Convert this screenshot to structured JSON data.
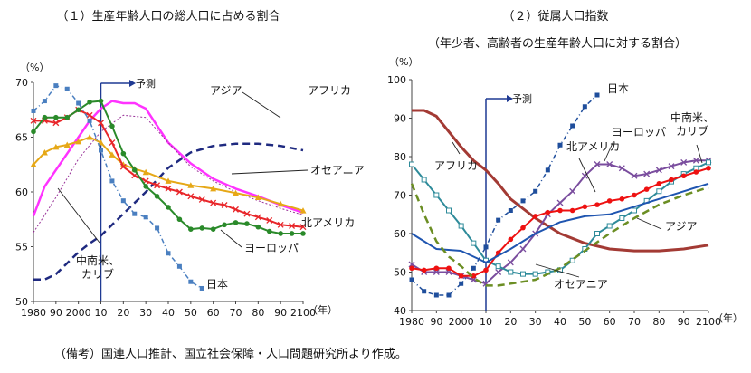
{
  "chart_data": [
    {
      "type": "line",
      "title": "（１）生産年齢人口の総人口に占める割合",
      "unit_label": "（%）",
      "xlabel": "（年）",
      "xlim": [
        1980,
        2100
      ],
      "ylim": [
        50,
        70
      ],
      "x_ticks": [
        1980,
        1990,
        2000,
        2010,
        2020,
        2030,
        2040,
        2050,
        2060,
        2070,
        2080,
        2090,
        2100
      ],
      "x_tick_labels": [
        "1980",
        "90",
        "2000",
        "10",
        "20",
        "30",
        "40",
        "50",
        "60",
        "70",
        "80",
        "90",
        "2100"
      ],
      "y_ticks": [
        50,
        55,
        60,
        65,
        70
      ],
      "forecast_x": 2010,
      "forecast_label": "予測",
      "grid": false,
      "legend": "inline labels",
      "series": [
        {
          "name": "アジア",
          "color": "#ff33ff",
          "style": "solid",
          "marker": "none",
          "x": [
            1980,
            1985,
            1990,
            1995,
            2000,
            2005,
            2010,
            2015,
            2020,
            2025,
            2030,
            2040,
            2050,
            2060,
            2070,
            2080,
            2090,
            2100
          ],
          "y": [
            57.8,
            60.5,
            62.0,
            63.5,
            65.0,
            66.5,
            67.6,
            68.3,
            68.1,
            68.1,
            67.6,
            64.5,
            62.6,
            61.2,
            60.3,
            59.6,
            58.8,
            58.1
          ]
        },
        {
          "name": "",
          "color": "#993399",
          "style": "dotted",
          "marker": "none",
          "x": [
            1980,
            1990,
            2000,
            2010,
            2020,
            2030,
            2040,
            2050,
            2060,
            2070,
            2080,
            2090,
            2100
          ],
          "y": [
            56.3,
            59.5,
            63.0,
            65.5,
            67.0,
            66.8,
            64.5,
            62.3,
            61.0,
            60.0,
            59.2,
            58.5,
            57.9
          ]
        },
        {
          "name": "アフリカ",
          "color": "#1f2a80",
          "style": "dashed",
          "marker": "none",
          "x": [
            1980,
            1985,
            1990,
            1995,
            2000,
            2005,
            2010,
            2015,
            2020,
            2030,
            2040,
            2050,
            2060,
            2070,
            2080,
            2090,
            2100
          ],
          "y": [
            52.0,
            52.0,
            52.5,
            53.5,
            54.5,
            55.3,
            56.0,
            57.0,
            58.0,
            60.0,
            62.2,
            63.6,
            64.2,
            64.4,
            64.4,
            64.2,
            63.8
          ]
        },
        {
          "name": "オセアニア",
          "color": "#e6a817",
          "style": "solid",
          "marker": "triangle",
          "x": [
            1980,
            1985,
            1990,
            1995,
            2000,
            2005,
            2010,
            2015,
            2020,
            2025,
            2030,
            2040,
            2050,
            2060,
            2070,
            2080,
            2090,
            2100
          ],
          "y": [
            62.5,
            63.6,
            64.1,
            64.3,
            64.6,
            65.0,
            64.5,
            63.4,
            62.5,
            62.1,
            61.8,
            61.0,
            60.6,
            60.3,
            59.9,
            59.5,
            58.9,
            58.3
          ]
        },
        {
          "name": "北アメリカ",
          "color": "#e8262a",
          "style": "solid",
          "marker": "x",
          "x": [
            1980,
            1985,
            1990,
            1995,
            2000,
            2005,
            2010,
            2015,
            2020,
            2025,
            2030,
            2035,
            2040,
            2045,
            2050,
            2055,
            2060,
            2065,
            2070,
            2075,
            2080,
            2085,
            2090,
            2095,
            2100
          ],
          "y": [
            66.5,
            66.5,
            66.3,
            66.8,
            67.5,
            67.0,
            66.3,
            64.5,
            62.3,
            61.5,
            61.0,
            60.6,
            60.3,
            60.0,
            59.6,
            59.3,
            59.0,
            58.8,
            58.4,
            58.0,
            57.7,
            57.4,
            57.0,
            56.9,
            56.8
          ]
        },
        {
          "name": "ヨーロッパ",
          "color": "#2a8a2a",
          "style": "solid",
          "marker": "circle",
          "x": [
            1980,
            1985,
            1990,
            1995,
            2000,
            2005,
            2010,
            2015,
            2020,
            2025,
            2030,
            2035,
            2040,
            2045,
            2050,
            2055,
            2060,
            2065,
            2070,
            2075,
            2080,
            2085,
            2090,
            2095,
            2100
          ],
          "y": [
            65.5,
            66.8,
            66.8,
            66.8,
            67.5,
            68.2,
            68.3,
            66.0,
            63.5,
            62.0,
            60.5,
            59.6,
            58.6,
            57.5,
            56.6,
            56.7,
            56.6,
            57.0,
            57.2,
            57.1,
            56.8,
            56.4,
            56.2,
            56.2,
            56.2
          ]
        },
        {
          "name": "日本",
          "color": "#4a7fc0",
          "style": "dashdot",
          "marker": "square",
          "x": [
            1980,
            1985,
            1990,
            1995,
            2000,
            2005,
            2010,
            2015,
            2020,
            2025,
            2030,
            2035,
            2040,
            2045,
            2050,
            2055
          ],
          "y": [
            67.4,
            68.3,
            69.7,
            69.4,
            68.1,
            66.5,
            63.8,
            61.0,
            59.2,
            58.0,
            57.7,
            56.7,
            54.4,
            53.2,
            51.8,
            51.2
          ]
        },
        {
          "name": "中南米、カリブ",
          "color": "#2e9d9d",
          "style": "solid",
          "marker": "none",
          "x": [],
          "y": []
        }
      ]
    },
    {
      "type": "line",
      "title": "（２）従属人口指数",
      "subtitle": "（年少者、高齢者の生産年齢人口に対する割合）",
      "unit_label": "（%）",
      "xlabel": "（年）",
      "xlim": [
        1980,
        2100
      ],
      "ylim": [
        40,
        100
      ],
      "x_ticks": [
        1980,
        1990,
        2000,
        2010,
        2020,
        2030,
        2040,
        2050,
        2060,
        2070,
        2080,
        2090,
        2100
      ],
      "x_tick_labels": [
        "1980",
        "90",
        "2000",
        "10",
        "20",
        "30",
        "40",
        "50",
        "60",
        "70",
        "80",
        "90",
        "2100"
      ],
      "y_ticks": [
        40,
        50,
        60,
        70,
        80,
        90,
        100
      ],
      "forecast_x": 2010,
      "forecast_label": "予測",
      "grid": false,
      "legend": "inline labels",
      "series": [
        {
          "name": "アフリカ",
          "color": "#a33a34",
          "style": "solid",
          "marker": "none",
          "x": [
            1980,
            1985,
            1990,
            1995,
            2000,
            2005,
            2010,
            2015,
            2020,
            2030,
            2040,
            2050,
            2060,
            2070,
            2080,
            2090,
            2100
          ],
          "y": [
            92,
            92,
            90.5,
            86.5,
            82.5,
            79,
            76.5,
            73,
            69,
            64,
            60,
            57.5,
            56,
            55.5,
            55.5,
            56,
            57
          ]
        },
        {
          "name": "日本",
          "color": "#1f4e9c",
          "style": "dashdot",
          "marker": "square",
          "x": [
            1980,
            1985,
            1990,
            1995,
            2000,
            2005,
            2010,
            2015,
            2020,
            2025,
            2030,
            2035,
            2040,
            2045,
            2050,
            2055
          ],
          "y": [
            48,
            45,
            44,
            44,
            47,
            51,
            56.5,
            63.5,
            66,
            68.5,
            71,
            76.5,
            83,
            88,
            93,
            96
          ]
        },
        {
          "name": "ヨーロッパ",
          "color": "#7a4d9e",
          "style": "solid",
          "marker": "x",
          "x": [
            1980,
            1985,
            1990,
            1995,
            2000,
            2005,
            2010,
            2015,
            2020,
            2025,
            2030,
            2035,
            2040,
            2045,
            2050,
            2055,
            2060,
            2065,
            2070,
            2075,
            2080,
            2085,
            2090,
            2095,
            2100
          ],
          "y": [
            52,
            50,
            50,
            50,
            49,
            48,
            47,
            50,
            52.5,
            56,
            60,
            65,
            68,
            71,
            75,
            78,
            78,
            77,
            75,
            75.5,
            76.5,
            77.5,
            78.5,
            79,
            79
          ]
        },
        {
          "name": "中南米、カリブ",
          "color": "#2e8b9a",
          "style": "solid",
          "marker": "square-hollow",
          "x": [
            1980,
            1985,
            1990,
            1995,
            2000,
            2005,
            2010,
            2015,
            2020,
            2025,
            2030,
            2035,
            2040,
            2045,
            2050,
            2055,
            2060,
            2065,
            2070,
            2075,
            2080,
            2085,
            2090,
            2095,
            2100
          ],
          "y": [
            78,
            74,
            70,
            66,
            62,
            57.5,
            53,
            51.5,
            50,
            49.5,
            49.5,
            50,
            50.5,
            53,
            56,
            60,
            62,
            64,
            66,
            68.5,
            71,
            73.5,
            75.5,
            77,
            78.5
          ]
        },
        {
          "name": "北アメリカ",
          "color": "#ee1111",
          "style": "solid",
          "marker": "circle",
          "x": [
            1980,
            1985,
            1990,
            1995,
            2000,
            2005,
            2010,
            2015,
            2020,
            2025,
            2030,
            2035,
            2040,
            2045,
            2050,
            2055,
            2060,
            2065,
            2070,
            2075,
            2080,
            2085,
            2090,
            2095,
            2100
          ],
          "y": [
            51,
            50.5,
            51,
            51,
            49,
            49,
            50.5,
            55,
            58.5,
            61.5,
            64.5,
            65.5,
            66,
            66,
            67,
            67.5,
            68.5,
            69,
            70,
            71.5,
            73,
            74,
            75,
            76,
            77
          ]
        },
        {
          "name": "",
          "color": "#1f55b0",
          "style": "solid",
          "marker": "none",
          "x": [
            1980,
            1990,
            2000,
            2010,
            2020,
            2030,
            2040,
            2050,
            2060,
            2070,
            2080,
            2090,
            2100
          ],
          "y": [
            60,
            56,
            55.5,
            52.5,
            56,
            60,
            63,
            64.5,
            65,
            67,
            69,
            71,
            73
          ]
        },
        {
          "name": "アジア",
          "color": "#6b8e23",
          "style": "dashed",
          "marker": "none",
          "x": [
            1980,
            1985,
            1990,
            1995,
            2000,
            2005,
            2010,
            2015,
            2020,
            2030,
            2040,
            2050,
            2060,
            2070,
            2080,
            2090,
            2100
          ],
          "y": [
            73,
            65,
            58,
            54,
            51.5,
            48.5,
            46.5,
            46.5,
            47,
            48,
            51,
            55.5,
            60,
            64,
            67.5,
            70,
            72
          ]
        },
        {
          "name": "オセアニア",
          "color": "#2e9d9d",
          "style": "solid",
          "marker": "none",
          "x": [],
          "y": []
        }
      ]
    }
  ],
  "note": "（備考）国連人口推計、国立社会保障・人口問題研究所より作成。"
}
